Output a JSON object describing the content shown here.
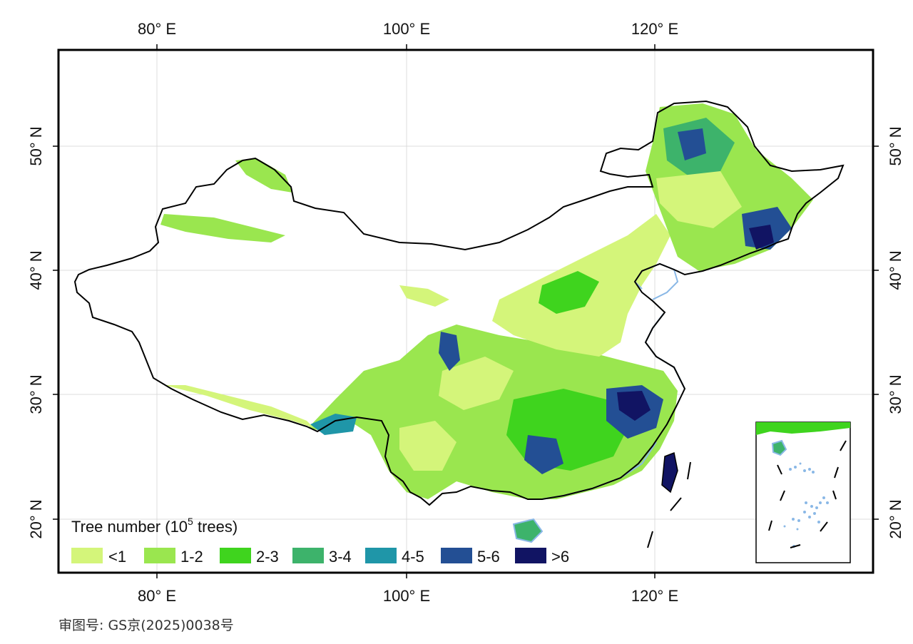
{
  "map": {
    "lon_ticks": [
      "80° E",
      "100° E",
      "120° E"
    ],
    "lat_ticks": [
      "20° N",
      "30° N",
      "40° N",
      "50° N"
    ],
    "legend": {
      "title_main": "Tree number (10",
      "title_sup": "5",
      "title_end": " trees)",
      "items": [
        {
          "label": "<1",
          "color": "#d4f57a"
        },
        {
          "label": "1-2",
          "color": "#9ae64f"
        },
        {
          "label": "2-3",
          "color": "#3fd41e"
        },
        {
          "label": "3-4",
          "color": "#3db36b"
        },
        {
          "label": "4-5",
          "color": "#1f96a8"
        },
        {
          "label": "5-6",
          "color": "#234f94"
        },
        {
          "label": ">6",
          "color": "#111463"
        }
      ]
    },
    "water_color": "#8ab8e6",
    "approval_number": "审图号: GS京(2025)0038号"
  }
}
